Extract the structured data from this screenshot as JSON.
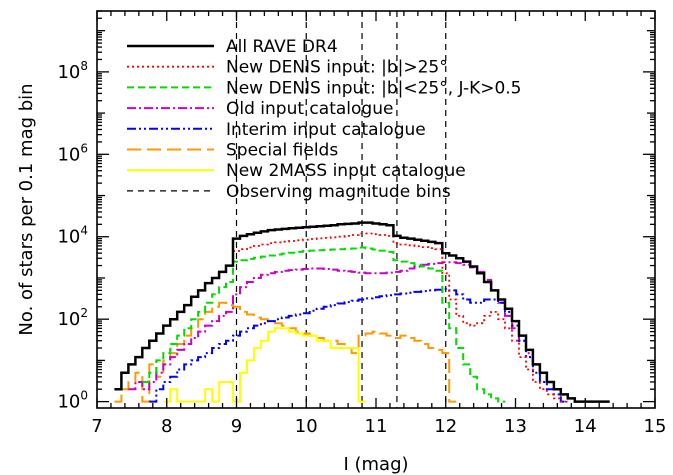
{
  "chart_data": {
    "type": "line",
    "step": true,
    "title": "",
    "xlabel": "I (mag)",
    "ylabel": "No. of stars per 0.1 mag bin",
    "xlim": [
      7,
      15
    ],
    "ylim": [
      0.7,
      3000000000
    ],
    "yscale": "log",
    "x_ticks": [
      7,
      8,
      9,
      10,
      11,
      12,
      13,
      14,
      15
    ],
    "y_ticks": [
      {
        "value": 1,
        "base": "10",
        "exp": "0"
      },
      {
        "value": 100,
        "base": "10",
        "exp": "2"
      },
      {
        "value": 10000,
        "base": "10",
        "exp": "4"
      },
      {
        "value": 1000000,
        "base": "10",
        "exp": "6"
      },
      {
        "value": 100000000,
        "base": "10",
        "exp": "8"
      }
    ],
    "vlines": [
      9.0,
      10.0,
      10.8,
      11.3,
      12.0
    ],
    "legend": {
      "position": "top-left"
    },
    "series": [
      {
        "name": "All RAVE DR4",
        "color": "#000000",
        "dash": "solid",
        "width": 2.5,
        "x": [
          7.3,
          7.4,
          7.5,
          7.6,
          7.7,
          7.8,
          7.9,
          8.0,
          8.1,
          8.2,
          8.3,
          8.4,
          8.5,
          8.6,
          8.7,
          8.8,
          8.9,
          9.0,
          9.1,
          9.2,
          9.3,
          9.4,
          9.5,
          9.6,
          9.7,
          9.8,
          9.9,
          10.0,
          10.1,
          10.2,
          10.3,
          10.4,
          10.5,
          10.6,
          10.7,
          10.8,
          10.9,
          11.0,
          11.1,
          11.2,
          11.3,
          11.4,
          11.5,
          11.6,
          11.7,
          11.8,
          11.9,
          12.0,
          12.1,
          12.2,
          12.3,
          12.4,
          12.5,
          12.6,
          12.7,
          12.8,
          12.9,
          13.0,
          13.1,
          13.2,
          13.3,
          13.4,
          13.5,
          13.6,
          13.7,
          13.8,
          13.9,
          14.0,
          14.1,
          14.2,
          14.3
        ],
        "y": [
          2,
          5,
          8,
          12,
          20,
          30,
          45,
          70,
          100,
          150,
          220,
          350,
          500,
          750,
          1000,
          1400,
          2000,
          9000,
          10500,
          11500,
          12500,
          13500,
          14500,
          15000,
          15500,
          16000,
          16500,
          17000,
          17500,
          18000,
          18500,
          19000,
          20000,
          20500,
          21000,
          22000,
          22000,
          21000,
          20000,
          19000,
          10500,
          9500,
          9000,
          8500,
          8000,
          7500,
          7000,
          4000,
          3500,
          3000,
          2500,
          1900,
          1300,
          800,
          500,
          300,
          180,
          90,
          40,
          18,
          8,
          5,
          3,
          2,
          1.5,
          1.2,
          1,
          1,
          1,
          1,
          1
        ]
      },
      {
        "name": "New DENIS input: |b|>25°",
        "color": "#ff0000",
        "dash": "dotted",
        "width": 1.8,
        "x": [
          9.0,
          9.1,
          9.2,
          9.3,
          9.4,
          9.5,
          9.6,
          9.7,
          9.8,
          9.9,
          10.0,
          10.1,
          10.2,
          10.3,
          10.4,
          10.5,
          10.6,
          10.7,
          10.8,
          10.9,
          11.0,
          11.1,
          11.2,
          11.3,
          11.4,
          11.5,
          11.6,
          11.7,
          11.8,
          11.9,
          12.0,
          12.1,
          12.2,
          12.3,
          12.4,
          12.5,
          12.6,
          12.7,
          12.8,
          12.9,
          13.0,
          13.1,
          13.2,
          13.3,
          13.4,
          13.5,
          13.6,
          13.7
        ],
        "y": [
          4500,
          5000,
          5500,
          6000,
          6500,
          7000,
          7300,
          7600,
          7900,
          8200,
          8500,
          8800,
          9100,
          9400,
          9700,
          10000,
          10500,
          11000,
          12000,
          12000,
          11500,
          11000,
          10500,
          7000,
          6500,
          6200,
          5900,
          5600,
          5300,
          5000,
          1300,
          300,
          120,
          80,
          70,
          80,
          120,
          150,
          100,
          60,
          30,
          12,
          6,
          3,
          2,
          1.5,
          1.2,
          1
        ]
      },
      {
        "name": "New DENIS input: |b|<25°, J-K>0.5",
        "color": "#00dd00",
        "dash": "dashed",
        "width": 2,
        "x": [
          7.7,
          7.8,
          7.9,
          8.0,
          8.1,
          8.2,
          8.3,
          8.4,
          8.5,
          8.6,
          8.7,
          8.8,
          8.9,
          9.0,
          9.1,
          9.2,
          9.3,
          9.4,
          9.5,
          9.6,
          9.7,
          9.8,
          9.9,
          10.0,
          10.1,
          10.2,
          10.3,
          10.4,
          10.5,
          10.6,
          10.7,
          10.8,
          10.9,
          11.0,
          11.1,
          11.2,
          11.3,
          11.4,
          11.5,
          11.6,
          11.7,
          11.8,
          11.9,
          12.0,
          12.1,
          12.2,
          12.3,
          12.4,
          12.5,
          12.6,
          12.7,
          12.8
        ],
        "y": [
          3,
          5,
          10,
          15,
          25,
          40,
          60,
          100,
          150,
          250,
          400,
          600,
          800,
          2500,
          2700,
          2900,
          3100,
          3300,
          3500,
          3700,
          3900,
          4100,
          4300,
          4500,
          4600,
          4700,
          4800,
          4900,
          5000,
          5100,
          5200,
          5500,
          5200,
          4900,
          4600,
          4300,
          2700,
          2500,
          2300,
          2100,
          1900,
          1700,
          1500,
          250,
          60,
          20,
          8,
          4,
          2,
          1.5,
          1.2,
          1
        ]
      },
      {
        "name": "Old input catalogue",
        "color": "#cc00cc",
        "dash": "dashdot",
        "width": 2,
        "x": [
          7.5,
          7.6,
          7.7,
          7.8,
          7.9,
          8.0,
          8.1,
          8.2,
          8.3,
          8.4,
          8.5,
          8.6,
          8.7,
          8.8,
          8.9,
          9.0,
          9.1,
          9.2,
          9.3,
          9.4,
          9.5,
          9.6,
          9.7,
          9.8,
          9.9,
          10.0,
          10.1,
          10.2,
          10.3,
          10.4,
          10.5,
          10.6,
          10.7,
          10.8,
          10.9,
          11.0,
          11.1,
          11.2,
          11.3,
          11.4,
          11.5,
          11.6,
          11.7,
          11.8,
          11.9,
          12.0,
          12.1,
          12.2,
          12.3,
          12.4,
          12.5,
          12.6,
          12.7,
          12.8,
          12.9,
          13.0,
          13.1,
          13.2,
          13.3,
          13.4,
          13.5,
          13.6,
          13.7,
          13.8,
          13.9
        ],
        "y": [
          2,
          3,
          2,
          3,
          5,
          8,
          12,
          18,
          25,
          35,
          50,
          70,
          90,
          120,
          150,
          400,
          600,
          800,
          1000,
          1200,
          1300,
          1400,
          1500,
          1550,
          1600,
          1650,
          1700,
          1700,
          1650,
          1600,
          1500,
          1450,
          1400,
          1350,
          1300,
          1300,
          1300,
          1350,
          1400,
          1500,
          1700,
          1900,
          2100,
          2200,
          2300,
          2400,
          2400,
          2300,
          2100,
          1800,
          1400,
          900,
          500,
          250,
          120,
          60,
          30,
          15,
          8,
          5,
          3,
          2,
          1.5,
          1.2,
          1
        ]
      },
      {
        "name": "Interim input catalogue",
        "color": "#0000ff",
        "dash": "dashdotdot",
        "width": 2,
        "x": [
          7.8,
          7.9,
          8.0,
          8.1,
          8.2,
          8.3,
          8.4,
          8.5,
          8.6,
          8.7,
          8.8,
          8.9,
          9.0,
          9.1,
          9.2,
          9.3,
          9.4,
          9.5,
          9.6,
          9.7,
          9.8,
          9.9,
          10.0,
          10.1,
          10.2,
          10.3,
          10.4,
          10.5,
          10.6,
          10.7,
          10.8,
          10.9,
          11.0,
          11.1,
          11.2,
          11.3,
          11.4,
          11.5,
          11.6,
          11.7,
          11.8,
          11.9,
          12.0,
          12.1,
          12.2,
          12.3,
          12.4,
          12.5,
          12.6,
          12.7,
          12.8,
          12.9,
          13.0,
          13.1,
          13.2,
          13.3,
          13.4,
          13.5,
          13.6,
          13.7
        ],
        "y": [
          1,
          2,
          3,
          4,
          6,
          8,
          10,
          12,
          15,
          20,
          25,
          30,
          40,
          50,
          60,
          70,
          80,
          90,
          100,
          110,
          120,
          130,
          140,
          160,
          180,
          200,
          220,
          240,
          260,
          280,
          300,
          320,
          340,
          360,
          380,
          400,
          420,
          440,
          460,
          480,
          500,
          520,
          540,
          500,
          400,
          300,
          250,
          250,
          300,
          300,
          250,
          150,
          70,
          30,
          12,
          5,
          3,
          2,
          1.5,
          1
        ]
      },
      {
        "name": "Special fields",
        "color": "#ff9900",
        "dash": "longdash",
        "width": 2,
        "x": [
          7.3,
          7.4,
          7.5,
          7.6,
          7.7,
          7.8,
          7.9,
          8.0,
          8.1,
          8.2,
          8.3,
          8.4,
          8.5,
          8.6,
          8.7,
          8.8,
          8.9,
          9.0,
          9.1,
          9.2,
          9.3,
          9.4,
          9.5,
          9.6,
          9.7,
          9.8,
          9.9,
          10.0,
          10.1,
          10.2,
          10.3,
          10.4,
          10.5,
          10.6,
          10.7,
          10.8,
          10.9,
          11.0,
          11.1,
          11.2,
          11.3,
          11.4,
          11.5,
          11.6,
          11.7,
          11.8,
          11.9,
          12.0,
          12.1
        ],
        "y": [
          1,
          2,
          3,
          5,
          1,
          8,
          4,
          10,
          15,
          25,
          40,
          60,
          100,
          150,
          200,
          250,
          220,
          200,
          150,
          130,
          110,
          100,
          90,
          80,
          70,
          60,
          50,
          45,
          40,
          35,
          30,
          30,
          25,
          20,
          15,
          40,
          45,
          50,
          45,
          40,
          35,
          40,
          35,
          30,
          25,
          20,
          18,
          15,
          1
        ]
      },
      {
        "name": "New 2MASS input catalogue",
        "color": "#ffff00",
        "dash": "solid",
        "width": 2,
        "x": [
          8.0,
          8.1,
          8.2,
          8.3,
          8.4,
          8.5,
          8.6,
          8.7,
          8.8,
          8.9,
          9.0,
          9.1,
          9.2,
          9.3,
          9.4,
          9.5,
          9.6,
          9.7,
          9.8,
          9.9,
          10.0,
          10.1,
          10.2,
          10.3,
          10.4,
          10.5,
          10.6,
          10.7,
          10.8
        ],
        "y": [
          1,
          2,
          1,
          1,
          1,
          1,
          2,
          1,
          3,
          3,
          1,
          5,
          10,
          20,
          30,
          50,
          60,
          60,
          50,
          45,
          40,
          40,
          30,
          30,
          20,
          20,
          20,
          20,
          1
        ]
      },
      {
        "name": "Observing magnitude bins",
        "color": "#000000",
        "dash": "obsbin",
        "width": 1.2,
        "legend_only": true
      }
    ]
  }
}
